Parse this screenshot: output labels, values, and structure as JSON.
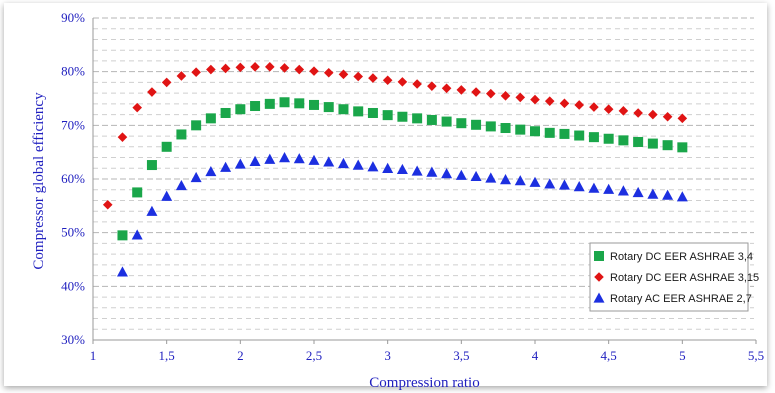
{
  "chart_data": {
    "type": "scatter",
    "xlabel": "Compression ratio",
    "ylabel": "Compressor global efficiency",
    "xlim": [
      1,
      5.5
    ],
    "ylim": [
      30,
      90
    ],
    "x_ticks": [
      "1",
      "1,5",
      "2",
      "2,5",
      "3",
      "3,5",
      "4",
      "4,5",
      "5",
      "5,5"
    ],
    "y_ticks": [
      "30%",
      "40%",
      "50%",
      "60%",
      "70%",
      "80%",
      "90%"
    ],
    "grid": "dashed",
    "legend_position": "lower-right",
    "series": [
      {
        "name": "Rotary DC EER ASHRAE 3,4",
        "marker": "square",
        "color": "#1aa64a",
        "x": [
          1.2,
          1.3,
          1.4,
          1.5,
          1.6,
          1.7,
          1.8,
          1.9,
          2.0,
          2.1,
          2.2,
          2.3,
          2.4,
          2.5,
          2.6,
          2.7,
          2.8,
          2.9,
          3.0,
          3.1,
          3.2,
          3.3,
          3.4,
          3.5,
          3.6,
          3.7,
          3.8,
          3.9,
          4.0,
          4.1,
          4.2,
          4.3,
          4.4,
          4.5,
          4.6,
          4.7,
          4.8,
          4.9,
          5.0
        ],
        "y": [
          49.5,
          57.5,
          62.6,
          66.0,
          68.3,
          70.0,
          71.3,
          72.3,
          73.0,
          73.6,
          74.0,
          74.3,
          74.1,
          73.8,
          73.4,
          73.0,
          72.6,
          72.3,
          71.9,
          71.6,
          71.3,
          71.0,
          70.7,
          70.4,
          70.1,
          69.8,
          69.5,
          69.2,
          68.9,
          68.6,
          68.4,
          68.1,
          67.8,
          67.5,
          67.2,
          66.9,
          66.6,
          66.3,
          65.9
        ]
      },
      {
        "name": "Rotary DC EER ASHRAE 3,15",
        "marker": "diamond",
        "color": "#e01414",
        "x": [
          1.1,
          1.2,
          1.3,
          1.4,
          1.5,
          1.6,
          1.7,
          1.8,
          1.9,
          2.0,
          2.1,
          2.2,
          2.3,
          2.4,
          2.5,
          2.6,
          2.7,
          2.8,
          2.9,
          3.0,
          3.1,
          3.2,
          3.3,
          3.4,
          3.5,
          3.6,
          3.7,
          3.8,
          3.9,
          4.0,
          4.1,
          4.2,
          4.3,
          4.4,
          4.5,
          4.6,
          4.7,
          4.8,
          4.9,
          5.0
        ],
        "y": [
          55.2,
          67.8,
          73.3,
          76.2,
          78.0,
          79.2,
          79.9,
          80.4,
          80.6,
          80.8,
          80.9,
          80.9,
          80.7,
          80.4,
          80.1,
          79.8,
          79.5,
          79.1,
          78.8,
          78.4,
          78.1,
          77.7,
          77.3,
          76.9,
          76.6,
          76.2,
          75.9,
          75.5,
          75.2,
          74.8,
          74.5,
          74.1,
          73.8,
          73.4,
          73.0,
          72.7,
          72.3,
          72.0,
          71.6,
          71.3
        ]
      },
      {
        "name": "Rotary AC EER ASHRAE 2,7",
        "marker": "triangle",
        "color": "#1c2fe0",
        "x": [
          1.2,
          1.3,
          1.4,
          1.5,
          1.6,
          1.7,
          1.8,
          1.9,
          2.0,
          2.1,
          2.2,
          2.3,
          2.4,
          2.5,
          2.6,
          2.7,
          2.8,
          2.9,
          3.0,
          3.1,
          3.2,
          3.3,
          3.4,
          3.5,
          3.6,
          3.7,
          3.8,
          3.9,
          4.0,
          4.1,
          4.2,
          4.3,
          4.4,
          4.5,
          4.6,
          4.7,
          4.8,
          4.9,
          5.0
        ],
        "y": [
          42.7,
          49.6,
          54.0,
          56.8,
          58.8,
          60.3,
          61.4,
          62.2,
          62.8,
          63.3,
          63.7,
          64.0,
          63.8,
          63.5,
          63.2,
          62.9,
          62.6,
          62.3,
          62.0,
          61.8,
          61.5,
          61.3,
          61.0,
          60.7,
          60.5,
          60.2,
          59.9,
          59.7,
          59.4,
          59.1,
          58.9,
          58.6,
          58.3,
          58.1,
          57.8,
          57.5,
          57.2,
          57.0,
          56.7
        ]
      }
    ]
  }
}
